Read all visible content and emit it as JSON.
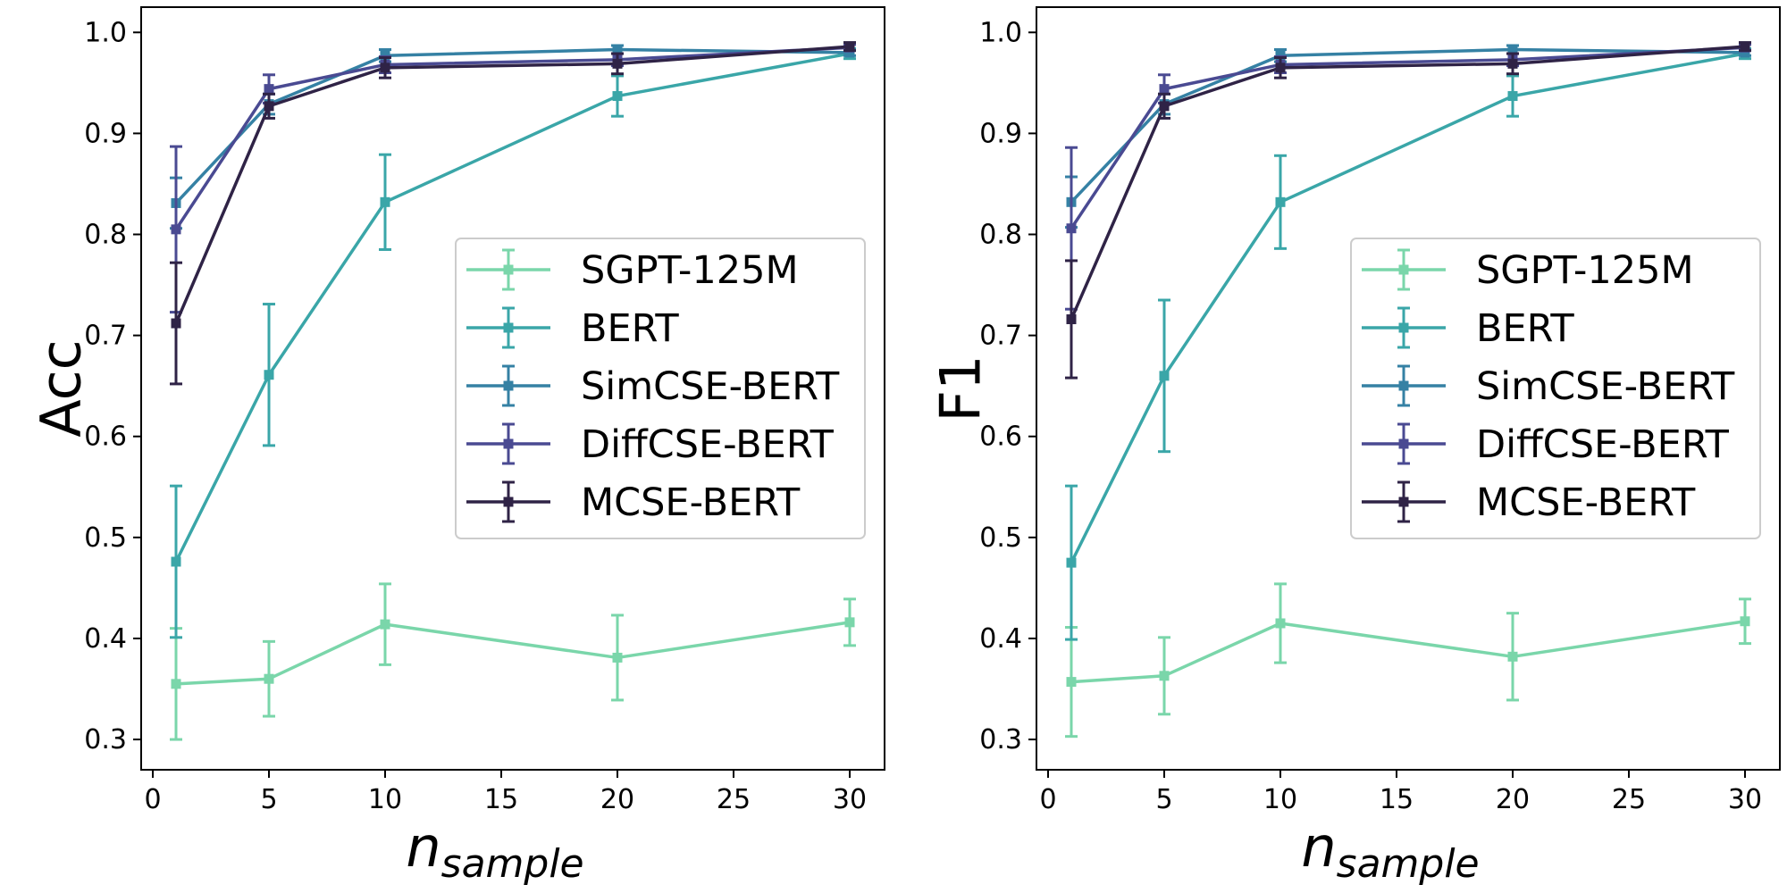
{
  "chart_data": [
    {
      "type": "line",
      "ylabel": "Acc",
      "xlabel_main": "n",
      "xlabel_sub": "sample",
      "xlim": [
        -0.5,
        31.5
      ],
      "ylim": [
        0.27,
        1.025
      ],
      "xticks": [
        "0",
        "5",
        "10",
        "15",
        "20",
        "25",
        "30"
      ],
      "yticks": [
        "0.3",
        "0.4",
        "0.5",
        "0.6",
        "0.7",
        "0.8",
        "0.9",
        "1.0"
      ],
      "grid": false,
      "legend": "center-right",
      "x": [
        1,
        5,
        10,
        20,
        30
      ],
      "series": [
        {
          "name": "SGPT-125M",
          "color": "#7ad6aa",
          "values": [
            0.355,
            0.36,
            0.414,
            0.381,
            0.416
          ],
          "err": [
            0.055,
            0.037,
            0.04,
            0.042,
            0.023
          ]
        },
        {
          "name": "BERT",
          "color": "#3aa6a8",
          "values": [
            0.476,
            0.661,
            0.832,
            0.937,
            0.979
          ],
          "err": [
            0.075,
            0.07,
            0.047,
            0.02,
            0.005
          ]
        },
        {
          "name": "SimCSE-BERT",
          "color": "#3581a4",
          "values": [
            0.831,
            0.929,
            0.977,
            0.983,
            0.98
          ],
          "err": [
            0.025,
            0.01,
            0.006,
            0.004,
            0.003
          ]
        },
        {
          "name": "DiffCSE-BERT",
          "color": "#4a4a92",
          "values": [
            0.805,
            0.944,
            0.968,
            0.973,
            0.985
          ],
          "err": [
            0.082,
            0.014,
            0.008,
            0.006,
            0.003
          ]
        },
        {
          "name": "MCSE-BERT",
          "color": "#2f2346",
          "values": [
            0.712,
            0.927,
            0.965,
            0.969,
            0.986
          ],
          "err": [
            0.06,
            0.012,
            0.01,
            0.01,
            0.004
          ]
        }
      ]
    },
    {
      "type": "line",
      "ylabel": "F1",
      "xlabel_main": "n",
      "xlabel_sub": "sample",
      "xlim": [
        -0.5,
        31.5
      ],
      "ylim": [
        0.27,
        1.025
      ],
      "xticks": [
        "0",
        "5",
        "10",
        "15",
        "20",
        "25",
        "30"
      ],
      "yticks": [
        "0.3",
        "0.4",
        "0.5",
        "0.6",
        "0.7",
        "0.8",
        "0.9",
        "1.0"
      ],
      "grid": false,
      "legend": "center-right",
      "x": [
        1,
        5,
        10,
        20,
        30
      ],
      "series": [
        {
          "name": "SGPT-125M",
          "color": "#7ad6aa",
          "values": [
            0.357,
            0.363,
            0.415,
            0.382,
            0.417
          ],
          "err": [
            0.054,
            0.038,
            0.039,
            0.043,
            0.022
          ]
        },
        {
          "name": "BERT",
          "color": "#3aa6a8",
          "values": [
            0.475,
            0.66,
            0.832,
            0.937,
            0.979
          ],
          "err": [
            0.076,
            0.075,
            0.046,
            0.02,
            0.005
          ]
        },
        {
          "name": "SimCSE-BERT",
          "color": "#3581a4",
          "values": [
            0.832,
            0.929,
            0.977,
            0.983,
            0.98
          ],
          "err": [
            0.025,
            0.01,
            0.006,
            0.004,
            0.003
          ]
        },
        {
          "name": "DiffCSE-BERT",
          "color": "#4a4a92",
          "values": [
            0.806,
            0.944,
            0.968,
            0.973,
            0.985
          ],
          "err": [
            0.08,
            0.014,
            0.008,
            0.006,
            0.003
          ]
        },
        {
          "name": "MCSE-BERT",
          "color": "#2f2346",
          "values": [
            0.716,
            0.927,
            0.965,
            0.969,
            0.986
          ],
          "err": [
            0.058,
            0.012,
            0.01,
            0.01,
            0.004
          ]
        }
      ]
    }
  ]
}
